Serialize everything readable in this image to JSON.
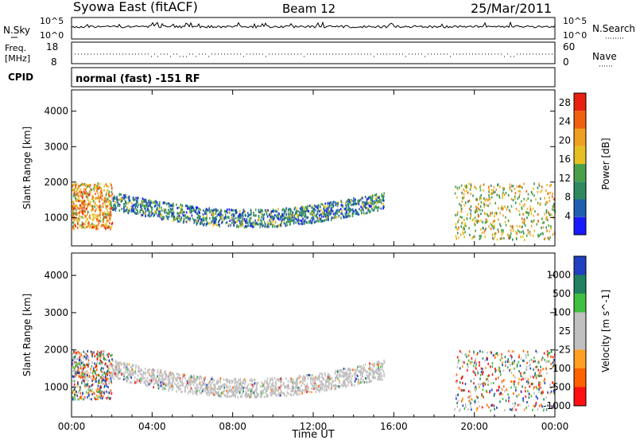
{
  "header": {
    "station": "Syowa East (fitACF)",
    "beam": "Beam 12",
    "date": "25/Mar/2011"
  },
  "noise_panel": {
    "left_label": "N.Sky",
    "right_label": "N.Search",
    "left_ticks": [
      "10^5",
      "10^0"
    ],
    "right_ticks": [
      "10^5",
      "10^0"
    ]
  },
  "freq_panel": {
    "left_label_line1": "Freq.",
    "left_label_line2": "[MHz]",
    "right_label": "Nave",
    "left_ticks": [
      "18",
      "8"
    ],
    "right_ticks": [
      "60",
      "0"
    ]
  },
  "cpid_panel": {
    "label": "CPID",
    "text": "normal (fast) -151 RF"
  },
  "colors": {
    "power_scale": [
      "#1a1aff",
      "#1f5fb0",
      "#2f8a60",
      "#4aa04a",
      "#e6c020",
      "#f0a020",
      "#f06010",
      "#e82010"
    ],
    "velocity_scale": [
      "#ff1010",
      "#ff6000",
      "#ffa020",
      "#c0c0c0",
      "#c0c0c0",
      "#40c040",
      "#208060",
      "#2040c0"
    ]
  },
  "chart_data": [
    {
      "type": "heatmap",
      "panel": "power",
      "title": "",
      "xlabel": "",
      "ylabel": "Slant Range [km]",
      "x_ticks": [
        "00:00",
        "04:00",
        "08:00",
        "12:00",
        "16:00",
        "20:00",
        "00:00"
      ],
      "y_ticks": [
        "1000",
        "2000",
        "3000",
        "4000"
      ],
      "ylim": [
        200,
        4600
      ],
      "xlim_hours": [
        0,
        24
      ],
      "colorbar": {
        "label": "Power [dB]",
        "ticks": [
          "4",
          "8",
          "12",
          "16",
          "20",
          "24",
          "28"
        ],
        "range": [
          0,
          30
        ]
      },
      "features": [
        {
          "x_hours": [
            2.0,
            15.5
          ],
          "range_km": [
            700,
            1800
          ],
          "dominant_value": 8,
          "description": "main echo band"
        },
        {
          "x_hours": [
            0.0,
            2.0
          ],
          "range_km": [
            700,
            2000
          ],
          "dominant_value": 20
        },
        {
          "x_hours": [
            19.0,
            24.0
          ],
          "range_km": [
            400,
            2000
          ],
          "dominant_value": 16
        }
      ]
    },
    {
      "type": "heatmap",
      "panel": "velocity",
      "title": "",
      "xlabel": "Time UT",
      "ylabel": "Slant Range [km]",
      "x_ticks": [
        "00:00",
        "04:00",
        "08:00",
        "12:00",
        "16:00",
        "20:00",
        "00:00"
      ],
      "y_ticks": [
        "1000",
        "2000",
        "3000",
        "4000"
      ],
      "ylim": [
        200,
        4600
      ],
      "xlim_hours": [
        0,
        24
      ],
      "colorbar": {
        "label": "Velocity [m s^-1]",
        "ticks": [
          "1000",
          "500",
          "100",
          "25",
          "-25",
          "-100",
          "-500",
          "-1000"
        ]
      },
      "features": [
        {
          "x_hours": [
            2.0,
            15.5
          ],
          "range_km": [
            700,
            1800
          ],
          "dominant_value": 0,
          "description": "ground scatter"
        },
        {
          "x_hours": [
            0.0,
            2.0
          ],
          "range_km": [
            700,
            2000
          ],
          "dominant_value": -300
        },
        {
          "x_hours": [
            19.0,
            24.0
          ],
          "range_km": [
            400,
            2000
          ],
          "dominant_value": 100
        }
      ]
    }
  ]
}
